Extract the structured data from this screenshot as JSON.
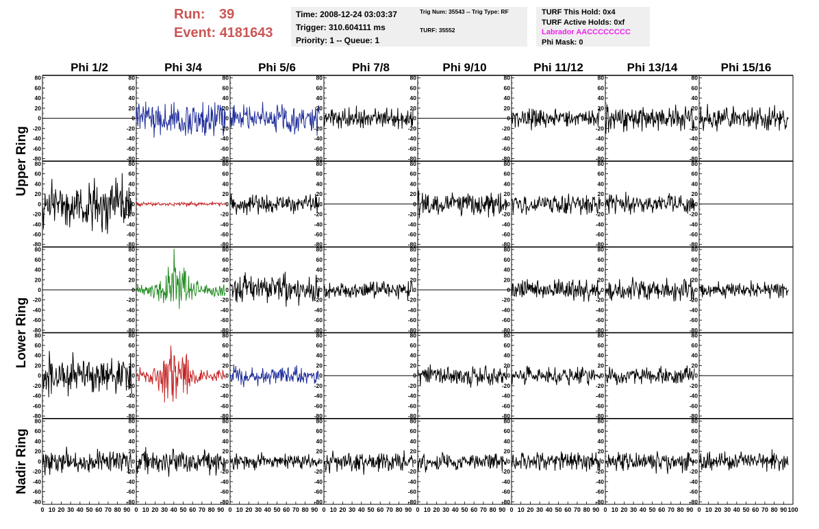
{
  "header": {
    "run_label": "Run:",
    "run_value": "39",
    "event_label": "Event:",
    "event_value": "4181643",
    "time": "Time: 2008-12-24 03:03:37",
    "trigger": "Trigger: 310.604111 ms",
    "priority": "Priority: 1 -- Queue: 1",
    "trig_num": "Trig Num: 35543 -- Trig Type: RF",
    "turf": "TURF: 35552",
    "turf_this_hold": "TURF This Hold: 0x4",
    "turf_active_holds": "TURF Active Holds: 0xf",
    "labrador": "Labrador AACCCCCCCC",
    "phi_mask": "Phi Mask: 0",
    "labrador_color": "#ee22ee",
    "run_color": "#cc5555"
  },
  "chart_data": {
    "type": "line",
    "columns": [
      "Phi 1/2",
      "Phi 3/4",
      "Phi 5/6",
      "Phi 7/8",
      "Phi 9/10",
      "Phi 11/12",
      "Phi 13/14",
      "Phi 15/16"
    ],
    "rows": [
      "Upper Ring",
      "Upper Ring",
      "Lower Ring",
      "Lower Ring",
      "Nadir Ring"
    ],
    "ring_labels": [
      {
        "label": "Upper Ring",
        "rows": [
          0,
          1
        ]
      },
      {
        "label": "Lower Ring",
        "rows": [
          2,
          3
        ]
      },
      {
        "label": "Nadir Ring",
        "rows": [
          4,
          4
        ]
      }
    ],
    "ylim": [
      -85,
      85
    ],
    "xlim": [
      0,
      100
    ],
    "yticks": [
      -80,
      -60,
      -40,
      -20,
      0,
      20,
      40,
      60,
      80
    ],
    "xticks": [
      0,
      10,
      20,
      30,
      40,
      50,
      60,
      70,
      80,
      90,
      100
    ],
    "colors": {
      "k": "#000000",
      "b": "#1f2d9a",
      "g": "#1f8a1f",
      "r": "#c42121"
    },
    "panels": [
      [
        {
          "s": "flat"
        },
        {
          "s": "noise",
          "amp": 22,
          "c": "b",
          "seed": 1
        },
        {
          "s": "noise",
          "amp": 18,
          "c": "b",
          "seed": 2
        },
        {
          "s": "noise",
          "amp": 12,
          "c": "k",
          "seed": 3
        },
        {
          "s": "flat"
        },
        {
          "s": "noise",
          "amp": 11,
          "c": "k",
          "seed": 4
        },
        {
          "s": "noise",
          "amp": 14,
          "c": "k",
          "seed": 5
        },
        {
          "s": "noise",
          "amp": 14,
          "c": "k",
          "seed": 6
        }
      ],
      [
        {
          "s": "noise",
          "amp": 30,
          "c": "k",
          "seed": 7
        },
        {
          "s": "noise",
          "amp": 2.5,
          "c": "r",
          "seed": 8
        },
        {
          "s": "noise",
          "amp": 12,
          "c": "k",
          "seed": 9
        },
        {
          "s": "flat"
        },
        {
          "s": "noise",
          "amp": 14,
          "c": "k",
          "seed": 10
        },
        {
          "s": "noise",
          "amp": 13,
          "c": "k",
          "seed": 11
        },
        {
          "s": "noise",
          "amp": 11,
          "c": "k",
          "seed": 12
        },
        {
          "s": "flat"
        }
      ],
      [
        {
          "s": "flat"
        },
        {
          "s": "noise",
          "amp": 22,
          "c": "g",
          "seed": 13,
          "burst": true
        },
        {
          "s": "noise",
          "amp": 17,
          "c": "k",
          "seed": 14
        },
        {
          "s": "noise",
          "amp": 11,
          "c": "k",
          "seed": 15
        },
        {
          "s": "flat"
        },
        {
          "s": "noise",
          "amp": 12,
          "c": "k",
          "seed": 16
        },
        {
          "s": "noise",
          "amp": 13,
          "c": "k",
          "seed": 17
        },
        {
          "s": "noise",
          "amp": 9,
          "c": "k",
          "seed": 18
        }
      ],
      [
        {
          "s": "noise",
          "amp": 22,
          "c": "k",
          "seed": 19
        },
        {
          "s": "noise",
          "amp": 25,
          "c": "r",
          "seed": 20,
          "burst": true
        },
        {
          "s": "noise",
          "amp": 10,
          "c": "b",
          "seed": 21
        },
        {
          "s": "flat"
        },
        {
          "s": "noise",
          "amp": 12,
          "c": "k",
          "seed": 22
        },
        {
          "s": "noise",
          "amp": 11,
          "c": "k",
          "seed": 23
        },
        {
          "s": "noise",
          "amp": 10,
          "c": "k",
          "seed": 24
        },
        {
          "s": "flat"
        }
      ],
      [
        {
          "s": "noise",
          "amp": 14,
          "c": "k",
          "seed": 25
        },
        {
          "s": "noise",
          "amp": 16,
          "c": "k",
          "seed": 26
        },
        {
          "s": "noise",
          "amp": 9,
          "c": "k",
          "seed": 27
        },
        {
          "s": "noise",
          "amp": 12,
          "c": "k",
          "seed": 28
        },
        {
          "s": "noise",
          "amp": 10,
          "c": "k",
          "seed": 29
        },
        {
          "s": "noise",
          "amp": 11,
          "c": "k",
          "seed": 30
        },
        {
          "s": "noise",
          "amp": 12,
          "c": "k",
          "seed": 31
        },
        {
          "s": "noise",
          "amp": 11,
          "c": "k",
          "seed": 32
        }
      ]
    ]
  }
}
